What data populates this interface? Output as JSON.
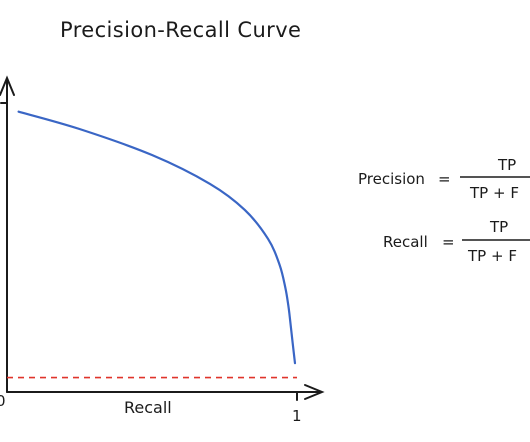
{
  "title": "Precision-Recall Curve",
  "chart_data": {
    "type": "line",
    "title": "Precision-Recall Curve",
    "xlabel": "Recall",
    "ylabel": "",
    "xlim": [
      0,
      1
    ],
    "ylim": [
      0,
      1
    ],
    "x_ticks": [
      "0",
      "1"
    ],
    "series": [
      {
        "x": [
          0.04,
          0.25,
          0.5,
          0.7,
          0.82,
          0.9,
          0.94,
          0.96,
          0.97,
          0.975,
          0.985,
          0.993
        ],
        "y": [
          0.97,
          0.91,
          0.82,
          0.72,
          0.63,
          0.53,
          0.44,
          0.36,
          0.3,
          0.26,
          0.17,
          0.1
        ],
        "color": "#3a66c5"
      }
    ],
    "baseline": {
      "y": 0.05,
      "color": "#e0342b",
      "style": "dashed"
    }
  },
  "formulas": {
    "precision": {
      "lhs": "Precision",
      "eq": "=",
      "numerator": "TP",
      "denominator": "TP + F"
    },
    "recall": {
      "lhs": "Recall",
      "eq": "=",
      "numerator": "TP",
      "denominator": "TP + F"
    }
  },
  "colors": {
    "curve": "#3a66c5",
    "baseline": "#e0342b",
    "ink": "#1b1b1b"
  }
}
